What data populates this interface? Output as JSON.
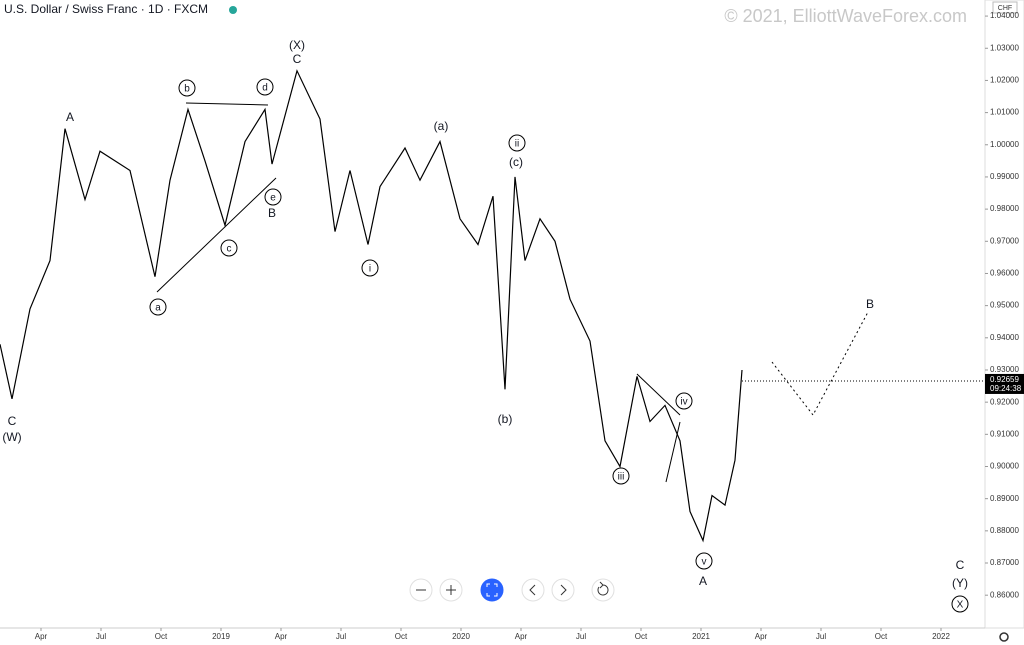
{
  "chart_data": {
    "type": "line",
    "title": "U.S. Dollar / Swiss Franc · 1D · FXCM",
    "watermark": "© 2021, ElliottWaveForex.com",
    "currency": "CHF",
    "last_price": {
      "value": 0.92659,
      "label": "0.92659"
    },
    "time_to_close": "09:24:38",
    "x": [
      0.95,
      1.55,
      2.45,
      3.45,
      4.2,
      5.2,
      5.95,
      7.45,
      8.7,
      9.45,
      10.35,
      11.2,
      12.2,
      13.2,
      14.2,
      14.55,
      15.8,
      16.95,
      17.7,
      18.45,
      19.35,
      19.95,
      21.2,
      21.95,
      22.95,
      23.95,
      24.85,
      25.6,
      26.2,
      26.7,
      27.2,
      27.95,
      28.7,
      29.45,
      30.45,
      31.2,
      31.95,
      32.8,
      33.45,
      34.2,
      34.95,
      35.45,
      36.1,
      36.55,
      37.2,
      37.7,
      38.05
    ],
    "series": [
      {
        "name": "USDCHF",
        "color": "#000000",
        "values": [
          0.938,
          0.921,
          0.949,
          0.964,
          1.005,
          0.983,
          0.998,
          0.992,
          0.959,
          0.989,
          1.011,
          0.995,
          0.975,
          1.001,
          1.011,
          0.994,
          1.023,
          1.008,
          0.973,
          0.992,
          0.969,
          0.987,
          0.999,
          0.989,
          1.001,
          0.977,
          0.969,
          0.984,
          0.924,
          0.99,
          0.964,
          0.977,
          0.97,
          0.952,
          0.939,
          0.908,
          0.9,
          0.928,
          0.914,
          0.919,
          0.908,
          0.886,
          0.877,
          0.891,
          0.888,
          0.902,
          0.93
        ]
      }
    ],
    "xlim": [
      0.95,
      50.2
    ],
    "ylim": [
      0.8498,
      1.045
    ],
    "xticks": [
      {
        "value": 3,
        "label": "Apr"
      },
      {
        "value": 6,
        "label": "Jul"
      },
      {
        "value": 9,
        "label": "Oct"
      },
      {
        "value": 12,
        "label": "2019"
      },
      {
        "value": 15,
        "label": "Apr"
      },
      {
        "value": 18,
        "label": "Jul"
      },
      {
        "value": 21,
        "label": "Oct"
      },
      {
        "value": 24,
        "label": "2020"
      },
      {
        "value": 27,
        "label": "Apr"
      },
      {
        "value": 30,
        "label": "Jul"
      },
      {
        "value": 33,
        "label": "Oct"
      },
      {
        "value": 36,
        "label": "2021"
      },
      {
        "value": 39,
        "label": "Apr"
      },
      {
        "value": 42,
        "label": "Jul"
      },
      {
        "value": 45,
        "label": "Oct"
      },
      {
        "value": 48,
        "label": "2022"
      }
    ],
    "yticks": [
      {
        "value": 0.86,
        "label": "0.86000"
      },
      {
        "value": 0.87,
        "label": "0.87000"
      },
      {
        "value": 0.88,
        "label": "0.88000"
      },
      {
        "value": 0.89,
        "label": "0.89000"
      },
      {
        "value": 0.9,
        "label": "0.90000"
      },
      {
        "value": 0.91,
        "label": "0.91000"
      },
      {
        "value": 0.92,
        "label": "0.92000"
      },
      {
        "value": 0.93,
        "label": "0.93000"
      },
      {
        "value": 0.94,
        "label": "0.94000"
      },
      {
        "value": 0.95,
        "label": "0.95000"
      },
      {
        "value": 0.96,
        "label": "0.96000"
      },
      {
        "value": 0.97,
        "label": "0.97000"
      },
      {
        "value": 0.98,
        "label": "0.98000"
      },
      {
        "value": 0.99,
        "label": "0.99000"
      },
      {
        "value": 1.0,
        "label": "1.00000"
      },
      {
        "value": 1.01,
        "label": "1.01000"
      },
      {
        "value": 1.02,
        "label": "1.02000"
      },
      {
        "value": 1.03,
        "label": "1.03000"
      },
      {
        "value": 1.04,
        "label": "1.04000"
      }
    ],
    "annotations": [
      "C",
      "(W)",
      "A",
      "b",
      "d",
      "(X)",
      "C",
      "a",
      "c",
      "e",
      "B",
      "i",
      "(a)",
      "ii",
      "(c)",
      "(b)",
      "iii",
      "iv",
      "v",
      "A",
      "B",
      "C",
      "(Y)",
      "X"
    ]
  }
}
